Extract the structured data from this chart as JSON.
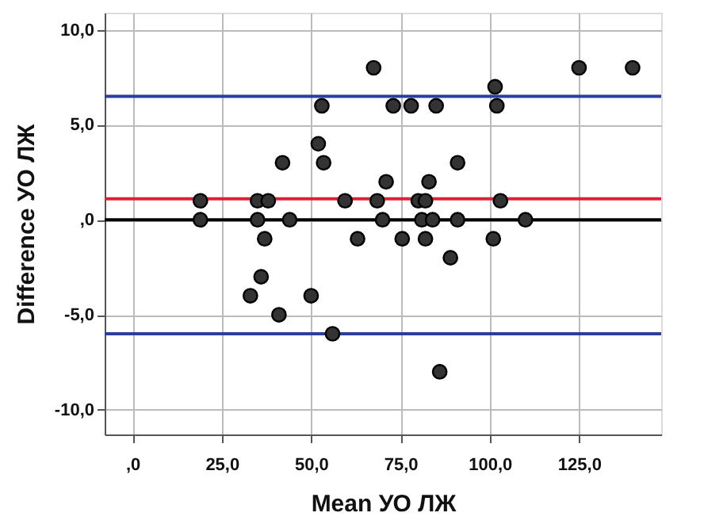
{
  "chart_data": {
    "type": "scatter",
    "xlabel": "Mean УО ЛЖ",
    "ylabel": "Difference УО ЛЖ",
    "xlim": [
      -7.8,
      148
    ],
    "ylim": [
      -11.3,
      10.9
    ],
    "xticks": [
      {
        "value": 0,
        "label": ",0"
      },
      {
        "value": 25,
        "label": "25,0"
      },
      {
        "value": 50,
        "label": "50,0"
      },
      {
        "value": 75,
        "label": "75,0"
      },
      {
        "value": 100,
        "label": "100,0"
      },
      {
        "value": 125,
        "label": "125,0"
      }
    ],
    "yticks": [
      {
        "value": -10,
        "label": "-10,0"
      },
      {
        "value": -5,
        "label": "-5,0"
      },
      {
        "value": 0,
        "label": ",0"
      },
      {
        "value": 5,
        "label": "5,0"
      },
      {
        "value": 10,
        "label": "10,0"
      }
    ],
    "grid": true,
    "marker": "circle",
    "series": [
      {
        "color": "#333333",
        "x": [
          67.5,
          53,
          73,
          78,
          52,
          53.5,
          42,
          71,
          19,
          35,
          38,
          59.5,
          68.5,
          80,
          82,
          103,
          19,
          35,
          44,
          70,
          81,
          84,
          91,
          110,
          37,
          63,
          75.5,
          82,
          101,
          89,
          125,
          140,
          101.5,
          102,
          85,
          91,
          83,
          36,
          33,
          50,
          41,
          56,
          86
        ],
        "values": [
          8,
          6,
          6,
          6,
          4,
          3,
          3,
          2,
          1,
          1,
          1,
          1,
          1,
          1,
          1,
          1,
          0,
          0,
          0,
          0,
          0,
          0,
          0,
          0,
          -1,
          -1,
          -1,
          -1,
          -1,
          -2,
          8,
          8,
          7,
          6,
          6,
          3,
          2,
          -3,
          -4,
          -4,
          -5,
          -6,
          -8
        ]
      }
    ],
    "ref_lines": [
      {
        "axis": "y",
        "value": 6.5,
        "color": "#2a3f9a"
      },
      {
        "axis": "y",
        "value": 1.1,
        "color": "#e0203a"
      },
      {
        "axis": "y",
        "value": 0,
        "color": "#000000"
      },
      {
        "axis": "y",
        "value": -6.0,
        "color": "#2a3f9a"
      }
    ]
  }
}
